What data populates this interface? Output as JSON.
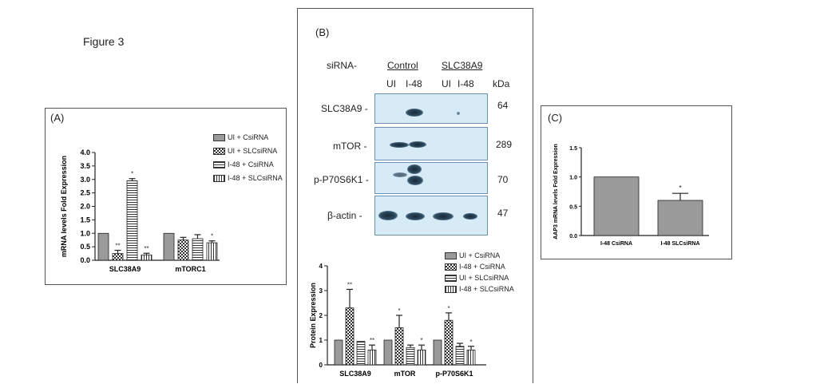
{
  "figure_title": "Figure 3",
  "panel_a": {
    "label": "(A)",
    "legend": [
      "UI + CsiRNA",
      "UI + SLCsiRNA",
      "I-48 + CsiRNA",
      "I-48 + SLCsiRNA"
    ]
  },
  "panel_b": {
    "label": "(B)",
    "sirna_label": "siRNA-",
    "group_control": "Control",
    "group_slc": "SLC38A9",
    "lane_labels": [
      "UI",
      "I-48",
      "UI",
      "I-48"
    ],
    "kda_label": "kDa",
    "blots": [
      {
        "name": "SLC38A9 -",
        "kda": "64"
      },
      {
        "name": "mTOR -",
        "kda": "289"
      },
      {
        "name": "p-P70S6K1 -",
        "kda": "70"
      },
      {
        "name": "β-actin -",
        "kda": "47"
      }
    ],
    "legend": [
      "UI + CsiRNA",
      "I-48 + CsiRNA",
      "UI + SLCsiRNA",
      "I-48 + SLCsiRNA"
    ]
  },
  "panel_c": {
    "label": "(C)"
  },
  "colors": {
    "bar_gray": "#9a9a9a",
    "blot_bg": "#d7ebf7",
    "band": "#1a2a36"
  },
  "chart_data": [
    {
      "type": "bar",
      "title": "",
      "ylabel": "mRNA levels Fold Expression",
      "ylim": [
        0,
        4.0
      ],
      "yticks": [
        "0.0",
        "0.5",
        "1.0",
        "1.5",
        "2.0",
        "2.5",
        "3.0",
        "3.5",
        "4.0"
      ],
      "categories": [
        "SLC38A9",
        "mTORC1"
      ],
      "series": [
        {
          "name": "UI + CsiRNA",
          "pattern": "solid",
          "values": [
            1.0,
            1.0
          ],
          "errors": [
            0,
            0
          ],
          "sig": [
            "",
            ""
          ]
        },
        {
          "name": "UI + SLCsiRNA",
          "pattern": "checker",
          "values": [
            0.25,
            0.75
          ],
          "errors": [
            0.12,
            0.1
          ],
          "sig": [
            "**",
            ""
          ]
        },
        {
          "name": "I-48 + CsiRNA",
          "pattern": "hstripe",
          "values": [
            2.95,
            0.8
          ],
          "errors": [
            0.08,
            0.15
          ],
          "sig": [
            "*",
            ""
          ]
        },
        {
          "name": "I-48 + SLCsiRNA",
          "pattern": "vstripe",
          "values": [
            0.2,
            0.65
          ],
          "errors": [
            0.06,
            0.07
          ],
          "sig": [
            "**",
            "*"
          ]
        }
      ]
    },
    {
      "type": "bar",
      "title": "",
      "ylabel": "Protein Expression",
      "ylim": [
        0,
        4
      ],
      "yticks": [
        "0",
        "1",
        "2",
        "3",
        "4"
      ],
      "categories": [
        "SLC38A9",
        "mTOR",
        "p-P70S6K1"
      ],
      "series": [
        {
          "name": "UI + CsiRNA",
          "pattern": "solid",
          "values": [
            1.0,
            1.0,
            1.0
          ],
          "errors": [
            0,
            0,
            0
          ],
          "sig": [
            "",
            "",
            ""
          ]
        },
        {
          "name": "I-48 + CsiRNA",
          "pattern": "checker",
          "values": [
            2.3,
            1.5,
            1.8
          ],
          "errors": [
            0.75,
            0.5,
            0.3
          ],
          "sig": [
            "**",
            "*",
            "*"
          ]
        },
        {
          "name": "UI + SLCsiRNA",
          "pattern": "hstripe",
          "values": [
            0.95,
            0.7,
            0.75
          ],
          "errors": [
            0,
            0.1,
            0.12
          ],
          "sig": [
            "",
            "",
            ""
          ]
        },
        {
          "name": "I-48 + SLCsiRNA",
          "pattern": "vstripe",
          "values": [
            0.6,
            0.6,
            0.6
          ],
          "errors": [
            0.2,
            0.2,
            0.15
          ],
          "sig": [
            "**",
            "*",
            "*"
          ]
        }
      ]
    },
    {
      "type": "bar",
      "title": "",
      "ylabel": "AAP3 mRNA levels Fold Expression",
      "ylim": [
        0,
        1.5
      ],
      "yticks": [
        "0.0",
        "0.5",
        "1.0",
        "1.5"
      ],
      "categories": [
        "I-48 CsiRNA",
        "I-48 SLCsiRNA"
      ],
      "values": [
        1.0,
        0.6
      ],
      "errors": [
        0,
        0.12
      ],
      "sig": [
        "",
        "*"
      ]
    }
  ]
}
